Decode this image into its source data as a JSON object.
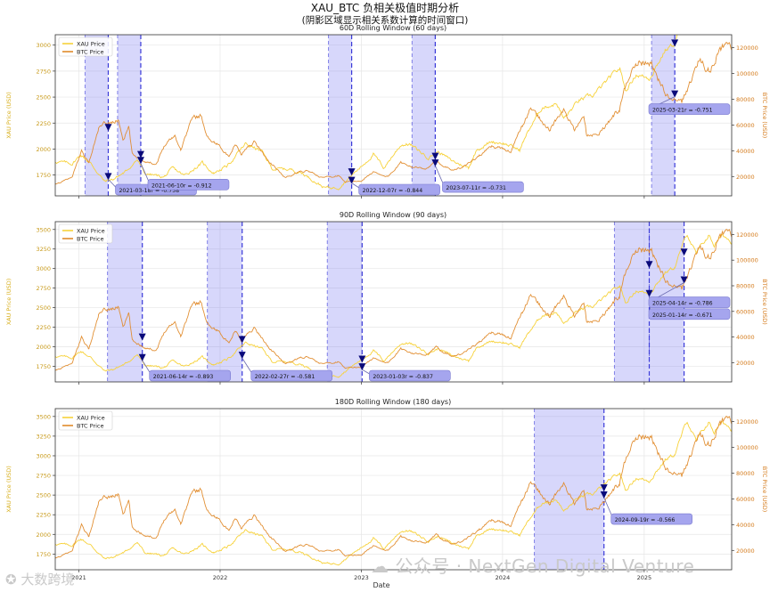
{
  "figure": {
    "title": "XAU_BTC 负相关极值时期分析",
    "subtitle": "(阴影区域显示相关系数计算的时间窗口)",
    "x_label": "Date",
    "x_ticks": [
      "2021",
      "2022",
      "2023",
      "2024",
      "2025"
    ],
    "watermark_left": "大数跨境",
    "watermark_right": "公众号 · NextGen Digital Venture"
  },
  "colors": {
    "xau": "#f7d23a",
    "btc": "#e08a2a",
    "shade": "#6f6ff0",
    "marker": "#0a0a7a",
    "label_bg": "#a5a5ee",
    "vline": "#3a3ad8"
  },
  "chart_data": [
    {
      "type": "line",
      "title": "60D Rolling Window (60 days)",
      "ylabel_left": "XAU Price (USD)",
      "ylabel_right": "BTC Price (USD)",
      "ylim_left": [
        1550,
        3100
      ],
      "yticks_left": [
        1750,
        2000,
        2250,
        2500,
        2750,
        3000
      ],
      "ylim_right": [
        5000,
        130000
      ],
      "yticks_right": [
        20000,
        40000,
        60000,
        80000,
        100000,
        120000
      ],
      "legend": [
        "XAU Price",
        "BTC Price"
      ],
      "legend_position": "top-left",
      "grid": true,
      "shade_days": 60,
      "events": [
        {
          "date": "2021-03-18",
          "label": "2021-03-18\nr = -0.758",
          "xau": 1735,
          "btc": 58000
        },
        {
          "date": "2021-06-10",
          "label": "2021-06-10\nr = -0.912",
          "xau": 1890,
          "btc": 37000
        },
        {
          "date": "2022-12-07",
          "label": "2022-12-07\nr = -0.844",
          "xau": 1780,
          "btc": 17000
        },
        {
          "date": "2023-07-11",
          "label": "2023-07-11\nr = -0.731",
          "xau": 1930,
          "btc": 30500
        },
        {
          "date": "2025-03-21",
          "label": "2025-03-21\nr = -0.751",
          "xau": 3020,
          "btc": 84000
        }
      ]
    },
    {
      "type": "line",
      "title": "90D Rolling Window (90 days)",
      "ylabel_left": "XAU Price (USD)",
      "ylabel_right": "BTC Price (USD)",
      "ylim_left": [
        1550,
        3600
      ],
      "yticks_left": [
        1750,
        2000,
        2250,
        2500,
        2750,
        3000,
        3250,
        3500
      ],
      "ylim_right": [
        5000,
        130000
      ],
      "yticks_right": [
        20000,
        40000,
        60000,
        80000,
        100000,
        120000
      ],
      "legend": [
        "XAU Price",
        "BTC Price"
      ],
      "legend_position": "top-left",
      "grid": true,
      "shade_days": 90,
      "events": [
        {
          "date": "2021-06-14",
          "label": "2021-06-14\nr = -0.893",
          "xau": 1860,
          "btc": 40000
        },
        {
          "date": "2022-02-27",
          "label": "2022-02-27\nr = -0.581",
          "xau": 1890,
          "btc": 38000
        },
        {
          "date": "2023-01-03",
          "label": "2023-01-03\nr = -0.837",
          "xau": 1840,
          "btc": 16700
        },
        {
          "date": "2025-01-14",
          "label": "2025-01-14\nr = -0.671",
          "xau": 2680,
          "btc": 96500
        },
        {
          "date": "2025-04-14",
          "label": "2025-04-14\nr = -0.786",
          "xau": 3210,
          "btc": 84500
        }
      ]
    },
    {
      "type": "line",
      "title": "180D Rolling Window (180 days)",
      "ylabel_left": "XAU Price (USD)",
      "ylabel_right": "BTC Price (USD)",
      "ylim_left": [
        1550,
        3600
      ],
      "yticks_left": [
        1750,
        2000,
        2250,
        2500,
        2750,
        3000,
        3250,
        3500
      ],
      "ylim_right": [
        5000,
        130000
      ],
      "yticks_right": [
        20000,
        40000,
        60000,
        80000,
        100000,
        120000
      ],
      "legend": [
        "XAU Price",
        "BTC Price"
      ],
      "legend_position": "top-left",
      "grid": true,
      "shade_days": 180,
      "events": [
        {
          "date": "2024-09-19",
          "label": "2024-09-19\nr = -0.566",
          "xau": 2590,
          "btc": 63000
        }
      ]
    }
  ],
  "series": {
    "x_range": [
      "2020-11-01",
      "2025-08-15"
    ],
    "xau_anchors": [
      [
        "2020-11-01",
        1880
      ],
      [
        "2020-12-15",
        1860
      ],
      [
        "2021-01-06",
        1945
      ],
      [
        "2021-02-01",
        1860
      ],
      [
        "2021-03-08",
        1690
      ],
      [
        "2021-03-31",
        1710
      ],
      [
        "2021-05-01",
        1780
      ],
      [
        "2021-06-01",
        1900
      ],
      [
        "2021-06-20",
        1765
      ],
      [
        "2021-08-09",
        1730
      ],
      [
        "2021-09-01",
        1815
      ],
      [
        "2021-09-30",
        1745
      ],
      [
        "2021-11-16",
        1865
      ],
      [
        "2021-12-15",
        1770
      ],
      [
        "2022-01-20",
        1840
      ],
      [
        "2022-03-08",
        2050
      ],
      [
        "2022-04-18",
        1980
      ],
      [
        "2022-05-16",
        1810
      ],
      [
        "2022-07-01",
        1805
      ],
      [
        "2022-08-01",
        1770
      ],
      [
        "2022-09-27",
        1630
      ],
      [
        "2022-11-03",
        1630
      ],
      [
        "2023-01-03",
        1840
      ],
      [
        "2023-02-01",
        1950
      ],
      [
        "2023-02-28",
        1820
      ],
      [
        "2023-04-13",
        2040
      ],
      [
        "2023-05-04",
        2050
      ],
      [
        "2023-06-23",
        1920
      ],
      [
        "2023-07-20",
        1975
      ],
      [
        "2023-08-21",
        1890
      ],
      [
        "2023-10-05",
        1820
      ],
      [
        "2023-10-27",
        2000
      ],
      [
        "2023-12-04",
        2070
      ],
      [
        "2024-01-02",
        2060
      ],
      [
        "2024-02-14",
        1990
      ],
      [
        "2024-03-08",
        2180
      ],
      [
        "2024-04-12",
        2400
      ],
      [
        "2024-05-20",
        2440
      ],
      [
        "2024-06-07",
        2290
      ],
      [
        "2024-07-17",
        2470
      ],
      [
        "2024-08-20",
        2510
      ],
      [
        "2024-10-30",
        2780
      ],
      [
        "2024-11-14",
        2560
      ],
      [
        "2024-12-11",
        2720
      ],
      [
        "2025-01-14",
        2680
      ],
      [
        "2025-02-24",
        2950
      ],
      [
        "2025-03-21",
        3020
      ],
      [
        "2025-04-22",
        3450
      ],
      [
        "2025-05-15",
        3180
      ],
      [
        "2025-06-16",
        3430
      ],
      [
        "2025-07-01",
        3300
      ],
      [
        "2025-07-23",
        3430
      ],
      [
        "2025-08-15",
        3340
      ]
    ],
    "btc_anchors": [
      [
        "2020-11-01",
        13700
      ],
      [
        "2020-12-15",
        19400
      ],
      [
        "2021-01-08",
        40000
      ],
      [
        "2021-01-27",
        30500
      ],
      [
        "2021-02-21",
        57000
      ],
      [
        "2021-03-13",
        61000
      ],
      [
        "2021-04-14",
        63500
      ],
      [
        "2021-04-25",
        49000
      ],
      [
        "2021-05-10",
        58000
      ],
      [
        "2021-05-19",
        37000
      ],
      [
        "2021-06-22",
        32000
      ],
      [
        "2021-07-20",
        29800
      ],
      [
        "2021-08-15",
        47000
      ],
      [
        "2021-09-06",
        52000
      ],
      [
        "2021-09-21",
        41000
      ],
      [
        "2021-10-20",
        65000
      ],
      [
        "2021-11-10",
        67500
      ],
      [
        "2021-12-04",
        49000
      ],
      [
        "2022-01-05",
        43000
      ],
      [
        "2022-01-24",
        34000
      ],
      [
        "2022-02-10",
        45000
      ],
      [
        "2022-02-24",
        37000
      ],
      [
        "2022-03-29",
        47500
      ],
      [
        "2022-05-10",
        31000
      ],
      [
        "2022-06-18",
        19000
      ],
      [
        "2022-07-30",
        24000
      ],
      [
        "2022-08-15",
        24500
      ],
      [
        "2022-09-20",
        19000
      ],
      [
        "2022-11-05",
        21000
      ],
      [
        "2022-11-21",
        15800
      ],
      [
        "2023-01-01",
        16500
      ],
      [
        "2023-02-01",
        23500
      ],
      [
        "2023-03-10",
        20000
      ],
      [
        "2023-04-14",
        30500
      ],
      [
        "2023-06-15",
        25000
      ],
      [
        "2023-07-13",
        31500
      ],
      [
        "2023-08-20",
        26000
      ],
      [
        "2023-09-15",
        26500
      ],
      [
        "2023-10-23",
        34000
      ],
      [
        "2023-12-08",
        44000
      ],
      [
        "2024-01-22",
        39500
      ],
      [
        "2024-03-14",
        73000
      ],
      [
        "2024-05-01",
        57000
      ],
      [
        "2024-06-07",
        71000
      ],
      [
        "2024-07-05",
        55000
      ],
      [
        "2024-07-29",
        69000
      ],
      [
        "2024-08-05",
        53000
      ],
      [
        "2024-09-06",
        53500
      ],
      [
        "2024-10-29",
        72500
      ],
      [
        "2024-11-22",
        99000
      ],
      [
        "2024-12-17",
        106000
      ],
      [
        "2025-01-20",
        108000
      ],
      [
        "2025-02-27",
        82000
      ],
      [
        "2025-04-08",
        76500
      ],
      [
        "2025-05-22",
        111000
      ],
      [
        "2025-06-22",
        100500
      ],
      [
        "2025-07-14",
        122000
      ],
      [
        "2025-08-15",
        118000
      ]
    ]
  }
}
